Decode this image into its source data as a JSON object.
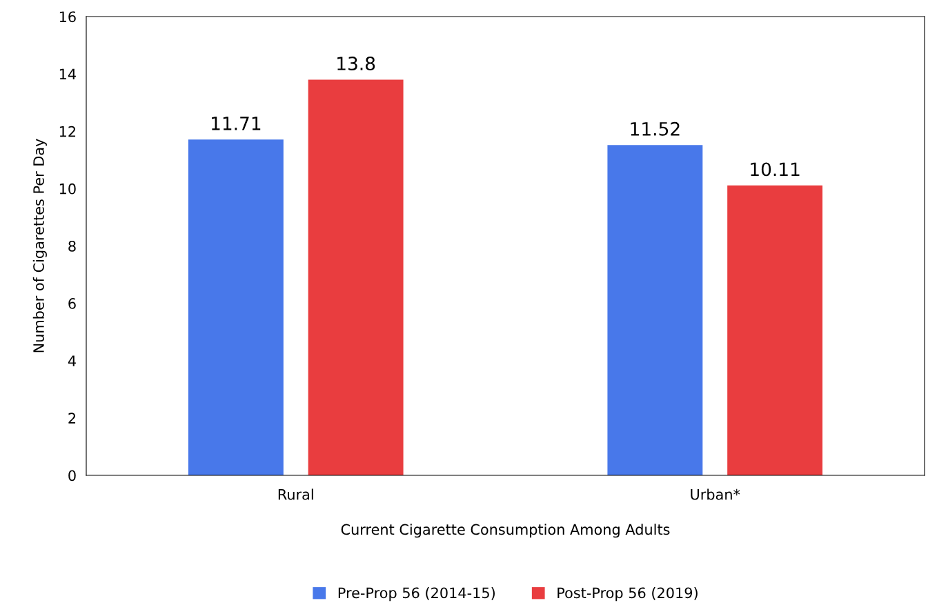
{
  "chart_data": {
    "type": "bar",
    "xlabel": "Current Cigarette Consumption Among Adults",
    "ylabel": "Number of Cigarettes Per Day",
    "categories": [
      "Rural",
      "Urban*"
    ],
    "series": [
      {
        "name": "Pre-Prop 56 (2014-15)",
        "color": "#4878ea",
        "values": [
          11.71,
          11.52
        ]
      },
      {
        "name": "Post-Prop 56 (2019)",
        "color": "#e93d3f",
        "values": [
          13.8,
          10.11
        ]
      }
    ],
    "ylim": [
      0,
      16
    ],
    "yticks": [
      0,
      2,
      4,
      6,
      8,
      10,
      12,
      14,
      16
    ],
    "grid": false,
    "legend": "bottom",
    "data_labels": true
  }
}
